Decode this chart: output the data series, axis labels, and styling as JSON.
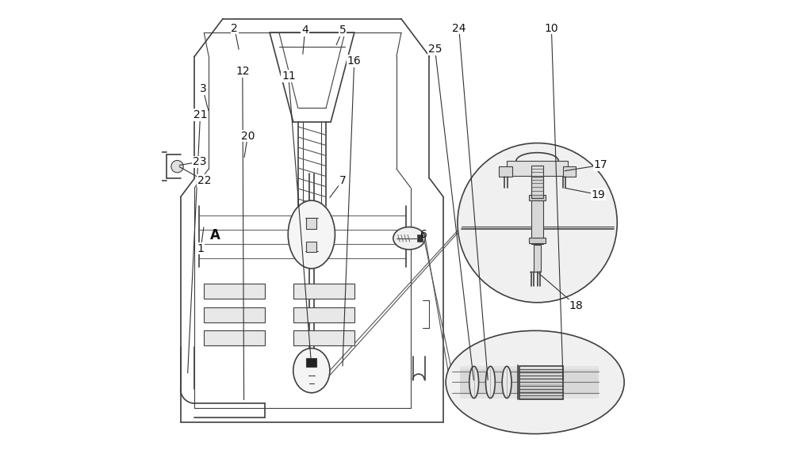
{
  "bg_color": "#ffffff",
  "line_color": "#404040",
  "light_gray": "#cccccc",
  "mid_gray": "#888888",
  "dark_fill": "#333333"
}
